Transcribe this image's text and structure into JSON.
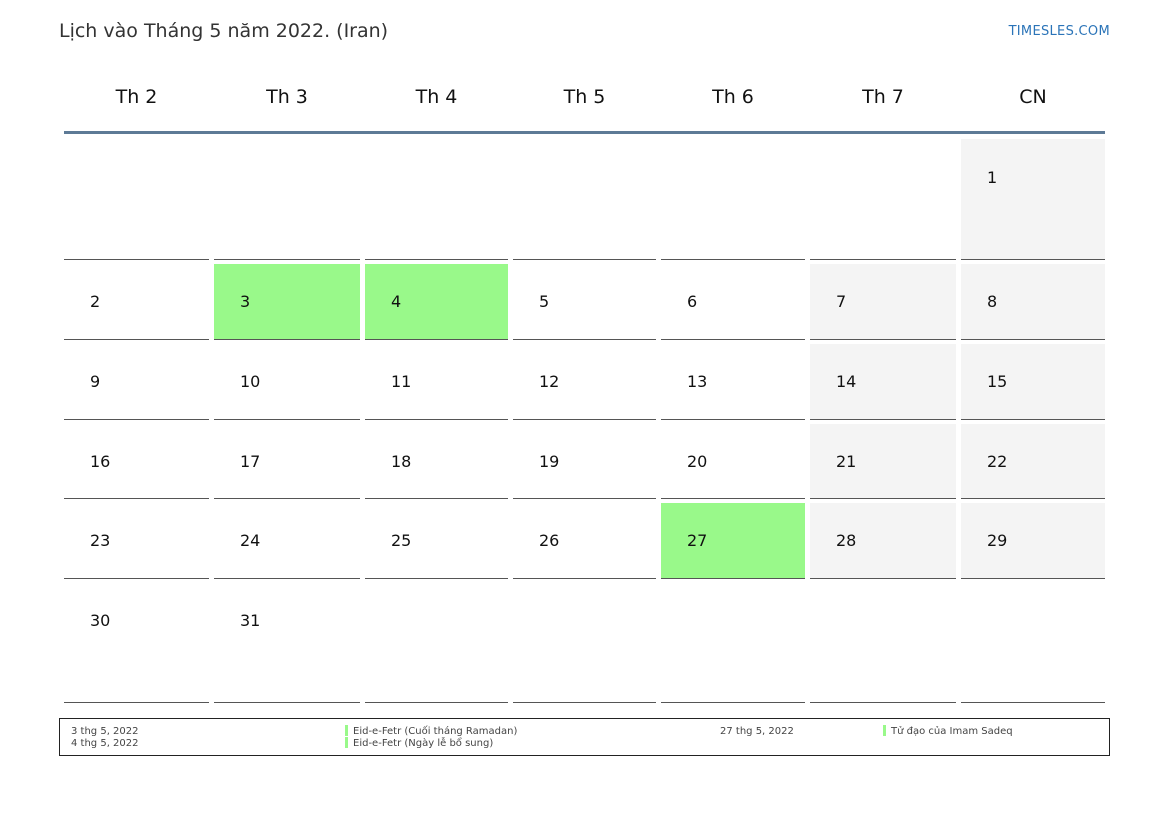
{
  "page": {
    "title": "Lịch vào Tháng 5 năm 2022. (Iran)",
    "brand": "TIMESLES.COM"
  },
  "weekdays": [
    "Th 2",
    "Th 3",
    "Th 4",
    "Th 5",
    "Th 6",
    "Th 7",
    "CN"
  ],
  "days": [
    {
      "day": "1",
      "week": 0,
      "col": 6,
      "type": "weekend"
    },
    {
      "day": "2",
      "week": 1,
      "col": 0,
      "type": "normal"
    },
    {
      "day": "3",
      "week": 1,
      "col": 1,
      "type": "holiday"
    },
    {
      "day": "4",
      "week": 1,
      "col": 2,
      "type": "holiday"
    },
    {
      "day": "5",
      "week": 1,
      "col": 3,
      "type": "normal"
    },
    {
      "day": "6",
      "week": 1,
      "col": 4,
      "type": "normal"
    },
    {
      "day": "7",
      "week": 1,
      "col": 5,
      "type": "weekend"
    },
    {
      "day": "8",
      "week": 1,
      "col": 6,
      "type": "weekend"
    },
    {
      "day": "9",
      "week": 2,
      "col": 0,
      "type": "normal"
    },
    {
      "day": "10",
      "week": 2,
      "col": 1,
      "type": "normal"
    },
    {
      "day": "11",
      "week": 2,
      "col": 2,
      "type": "normal"
    },
    {
      "day": "12",
      "week": 2,
      "col": 3,
      "type": "normal"
    },
    {
      "day": "13",
      "week": 2,
      "col": 4,
      "type": "normal"
    },
    {
      "day": "14",
      "week": 2,
      "col": 5,
      "type": "weekend"
    },
    {
      "day": "15",
      "week": 2,
      "col": 6,
      "type": "weekend"
    },
    {
      "day": "16",
      "week": 3,
      "col": 0,
      "type": "normal"
    },
    {
      "day": "17",
      "week": 3,
      "col": 1,
      "type": "normal"
    },
    {
      "day": "18",
      "week": 3,
      "col": 2,
      "type": "normal"
    },
    {
      "day": "19",
      "week": 3,
      "col": 3,
      "type": "normal"
    },
    {
      "day": "20",
      "week": 3,
      "col": 4,
      "type": "normal"
    },
    {
      "day": "21",
      "week": 3,
      "col": 5,
      "type": "weekend"
    },
    {
      "day": "22",
      "week": 3,
      "col": 6,
      "type": "weekend"
    },
    {
      "day": "23",
      "week": 4,
      "col": 0,
      "type": "normal"
    },
    {
      "day": "24",
      "week": 4,
      "col": 1,
      "type": "normal"
    },
    {
      "day": "25",
      "week": 4,
      "col": 2,
      "type": "normal"
    },
    {
      "day": "26",
      "week": 4,
      "col": 3,
      "type": "normal"
    },
    {
      "day": "27",
      "week": 4,
      "col": 4,
      "type": "holiday"
    },
    {
      "day": "28",
      "week": 4,
      "col": 5,
      "type": "weekend"
    },
    {
      "day": "29",
      "week": 4,
      "col": 6,
      "type": "weekend"
    },
    {
      "day": "30",
      "week": 5,
      "col": 0,
      "type": "normal"
    },
    {
      "day": "31",
      "week": 5,
      "col": 1,
      "type": "normal"
    }
  ],
  "legend": {
    "left": [
      {
        "date": "3 thg 5, 2022",
        "name": "Eid-e-Fetr (Cuối tháng Ramadan)"
      },
      {
        "date": "4 thg 5, 2022",
        "name": "Eid-e-Fetr (Ngày lễ bổ sung)"
      }
    ],
    "right": [
      {
        "date": "27 thg 5, 2022",
        "name": "Tử đạo của Imam Sadeq"
      }
    ]
  },
  "colors": {
    "holiday": "#99f98a",
    "weekend": "#f4f4f4",
    "header_rule": "#5d7a96",
    "brand": "#2b74b8"
  }
}
